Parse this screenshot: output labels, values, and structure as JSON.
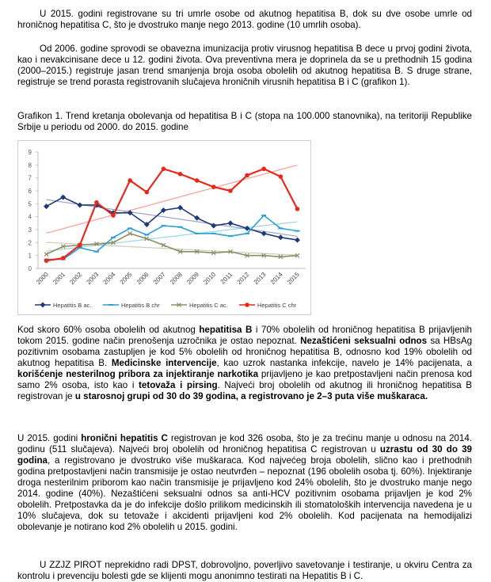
{
  "paragraphs": [
    {
      "runs": [
        {
          "text": "U 2015. godini registrovane su tri umrle osobe od akutnog hepatitisa B, dok su dve osobe umrle od hroničnog hepatitisa C, što je dvostruko manje nego 2013. godine (10 umrlih osoba)."
        }
      ]
    },
    {
      "runs": [
        {
          "text": "Od 2006. godine sprovodi se obavezna imunizacija protiv virusnog hepatitisa B dece u prvoj godini života, kao i nevakcinisane dece u 12. godini života. Ova preventivna mera je doprinela da se u prethodnih 15 godina (2000–2015.) registruje jasan trend smanjenja broja osoba obolelih od akutnog hepatitisa B. S druge strane, registruje se trend porasta registrovanih slučajeva hroničnih virusnih hepatitisa  B i C (grafikon 1)."
        }
      ]
    },
    {
      "runs": [
        {
          "text": "Grafikon 1. Trend kretanja obolevanja od hepatitisa B i C (stopa na 100.000 stanovnika), na teritoriji Republike Srbije u periodu od 2000. do 2015. godine"
        }
      ]
    },
    {
      "runs": [
        {
          "text": "Kod skoro 60% osoba obolelih od akutnog "
        },
        {
          "text": "hepatitisa B",
          "bold": true
        },
        {
          "text": " i 70% obolelih od hroničnog hepatitisa B prijavljenih tokom 2015. godine način prenošenja uzročnika je ostao nepoznat. "
        },
        {
          "text": "Nezaštićeni seksualni odnos",
          "bold": true
        },
        {
          "text": " sa HBsAg pozitivnim osobama zastupljen je kod 5% obolelih od hroničnog hepatitisa B, odnosno kod 19% obolelih od akutnog hepatitisa B. "
        },
        {
          "text": "Medicinske intervencije",
          "bold": true
        },
        {
          "text": ", kao uzrok nastanka infekcije, navelo je 14% pacijenata, a "
        },
        {
          "text": "korišćenje nesterilnog pribora za injektiranje narkotika",
          "bold": true
        },
        {
          "text": " prijavljeno je kao pretpostavljeni način prenosa kod samo 2% osoba, isto kao i "
        },
        {
          "text": "tetovaža i pirsing",
          "bold": true
        },
        {
          "text": ". Najveći broj obolelih od akutnog ili hroničnog hepatitisa B registrovan je "
        },
        {
          "text": "u starosnoj grupi od 30 do 39 godina, a registrovano je 2–3 puta više muškaraca.",
          "bold": true
        }
      ]
    },
    {
      "runs": [
        {
          "text": "U 2015. godini "
        },
        {
          "text": "hronični hepatitis C",
          "bold": true
        },
        {
          "text": " registrovan je kod 326 osoba, što je za trećinu manje u odnosu na 2014. godinu (511 slučajeva). Najveći broj obolelih od hroničnog hepatitisa C registrovan u "
        },
        {
          "text": "uzrastu od 30 do 39 godina",
          "bold": true
        },
        {
          "text": ", a registrovano je dvostruko više muškaraca. Kod najvećeg broja obolelih, slično kao i prethodnih godina pretpostavljeni način transmisije je ostao neutvrđen – nepoznat (196 obolelih osoba tj. 60%). Injektiranje droga nesterilnim priborom kao način transmisije je prijavljeno kod 24% obolelih, što je dvostruko manje nego 2014. godine (40%). Nezaštićeni seksualni odnos sa anti-HCV pozitivnim osobama prijavljen je kod 2% obolelih. Pretpostavka da je do infekcije došlo prilikom medicinskih ili stomatoloških intervencija navedena je u 10% slučajeva, dok su tetovaže i akcidenti prijavljeni kod 2% obolelih. Kod pacijenata na hemodijalizi obolevanje je notirano kod 2% obolelih u 2015. godini."
        }
      ]
    },
    {
      "runs": [
        {
          "text": "U ZZJZ PIROT neprekidno radi DPST, dobrovoljno, poverljivo savetovanje  i testiranje,  u okviru Centra za kontrolu i prevenciju bolesti gde se klijenti mogu anonimno testirati na Hepatitis B i C."
        }
      ]
    }
  ],
  "chart_data": {
    "type": "line",
    "categories": [
      "2000",
      "2001",
      "2002",
      "2003",
      "2004",
      "2005",
      "2006",
      "2007",
      "2008",
      "2009",
      "2010",
      "2011",
      "2012",
      "2013",
      "2014",
      "2015"
    ],
    "series": [
      {
        "name": "Hepatitis B ac.",
        "color": "#1f3a7a",
        "marker": "diamond",
        "values": [
          4.8,
          5.5,
          4.9,
          4.9,
          4.3,
          4.3,
          3.4,
          4.5,
          4.7,
          3.9,
          3.3,
          3.5,
          3.1,
          2.7,
          2.4,
          2.2
        ]
      },
      {
        "name": "Hepatitis B chr",
        "color": "#2a9fd6",
        "marker": "dash",
        "values": [
          0.7,
          0.7,
          1.6,
          1.3,
          2.4,
          3.1,
          2.6,
          3.3,
          3.2,
          2.7,
          2.7,
          2.5,
          2.7,
          4.1,
          3.1,
          2.9
        ]
      },
      {
        "name": "Hepatitis C ac.",
        "color": "#8e8e66",
        "marker": "x",
        "values": [
          1.1,
          1.7,
          1.8,
          1.9,
          2.0,
          2.7,
          2.3,
          1.8,
          1.3,
          1.3,
          1.2,
          1.3,
          1.0,
          1.0,
          0.9,
          1.0
        ]
      },
      {
        "name": "Hepatitis C chr",
        "color": "#e8281b",
        "marker": "circle",
        "values": [
          0.6,
          0.8,
          1.8,
          5.1,
          4.1,
          6.8,
          5.9,
          7.7,
          7.3,
          6.8,
          6.3,
          6.0,
          7.2,
          7.7,
          7.1,
          4.6
        ]
      }
    ],
    "ylim": [
      0,
      9
    ],
    "yticks": [
      0,
      1,
      2,
      3,
      4,
      5,
      6,
      7,
      8,
      9
    ],
    "grid": false,
    "trendlines": true,
    "legend": "bottom"
  }
}
